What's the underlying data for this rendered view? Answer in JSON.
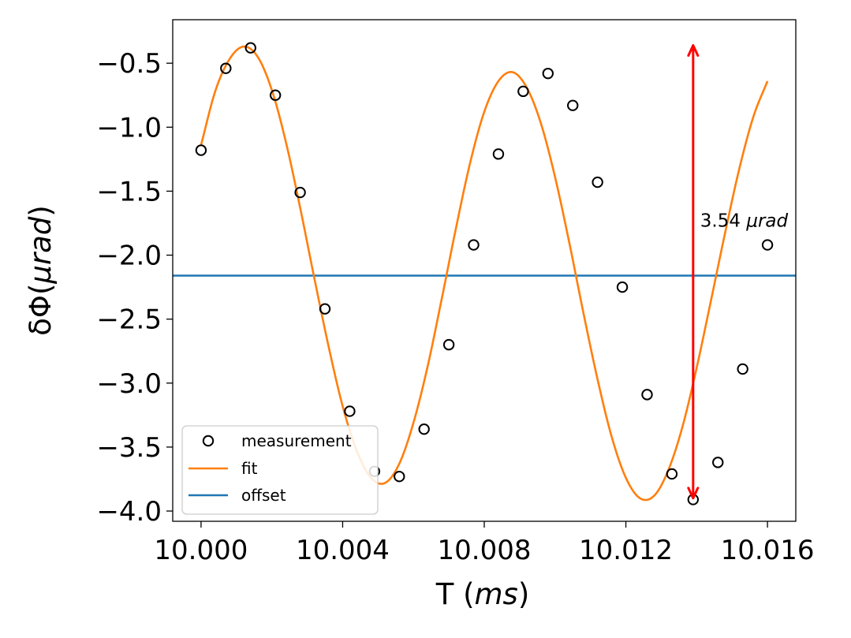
{
  "chart_data": {
    "type": "scatter",
    "xlabel": {
      "prefix": "T (",
      "unit": "ms",
      "suffix": ")"
    },
    "ylabel": {
      "prefix": "δΦ(",
      "unit": "μrad",
      "suffix": ")"
    },
    "xlim": [
      9.9992,
      10.0168
    ],
    "ylim": [
      -4.08,
      -0.16
    ],
    "x_ticks": [
      10.0,
      10.004,
      10.008,
      10.012,
      10.016
    ],
    "x_tick_labels": [
      "10.000",
      "10.004",
      "10.008",
      "10.012",
      "10.016"
    ],
    "y_ticks": [
      -0.5,
      -1.0,
      -1.5,
      -2.0,
      -2.5,
      -3.0,
      -3.5,
      -4.0
    ],
    "y_tick_labels": [
      "−0.5",
      "−1.0",
      "−1.5",
      "−2.0",
      "−2.5",
      "−3.0",
      "−3.5",
      "−4.0"
    ],
    "grid": false,
    "legend_position": "lower-left",
    "series": [
      {
        "name": "measurement",
        "kind": "markers",
        "color": "#000000",
        "x": [
          10.0,
          10.0007,
          10.0014,
          10.0021,
          10.0028,
          10.0035,
          10.0042,
          10.0049,
          10.0056,
          10.0063,
          10.007,
          10.0077,
          10.0084,
          10.0091,
          10.0098,
          10.0105,
          10.0112,
          10.0119,
          10.0126,
          10.0133,
          10.0139,
          10.0146,
          10.0153,
          10.016
        ],
        "y": [
          -1.18,
          -0.54,
          -0.38,
          -0.75,
          -1.51,
          -2.42,
          -3.22,
          -3.69,
          -3.73,
          -3.36,
          -2.7,
          -1.92,
          -1.21,
          -0.72,
          -0.58,
          -0.83,
          -1.43,
          -2.25,
          -3.09,
          -3.71,
          -3.91,
          -3.62,
          -2.89,
          -1.92
        ]
      },
      {
        "name": "fit",
        "kind": "line",
        "color": "#ff7f0e",
        "x": [
          10.0,
          10.0004,
          10.0008,
          10.0012,
          10.0016,
          10.002,
          10.0024,
          10.0028,
          10.0032,
          10.0036,
          10.004,
          10.0044,
          10.0048,
          10.0052,
          10.0056,
          10.006,
          10.0064,
          10.0068,
          10.0072,
          10.0076,
          10.008,
          10.0084,
          10.0088,
          10.0092,
          10.0096,
          10.01,
          10.0104,
          10.0108,
          10.0112,
          10.0116,
          10.012,
          10.0124,
          10.0128,
          10.0132,
          10.0136,
          10.014,
          10.0144,
          10.0148,
          10.0152,
          10.0156,
          10.016
        ],
        "y": [
          -1.14,
          -0.72,
          -0.47,
          -0.37,
          -0.45,
          -0.71,
          -1.12,
          -1.63,
          -2.18,
          -2.71,
          -3.18,
          -3.53,
          -3.74,
          -3.78,
          -3.63,
          -3.31,
          -2.87,
          -2.34,
          -1.79,
          -1.28,
          -0.88,
          -0.64,
          -0.57,
          -0.69,
          -0.97,
          -1.39,
          -1.9,
          -2.45,
          -2.97,
          -3.42,
          -3.74,
          -3.9,
          -3.88,
          -3.68,
          -3.34,
          -2.88,
          -2.36,
          -1.83,
          -1.33,
          -0.92,
          -0.64
        ]
      },
      {
        "name": "offset",
        "kind": "hline",
        "color": "#1f77b4",
        "y": -2.16
      }
    ],
    "annotations": [
      {
        "kind": "double-arrow",
        "color": "#ff0000",
        "x": 10.0139,
        "y_from": -0.36,
        "y_to": -3.9,
        "label_number": "3.54",
        "label_unit": "μrad",
        "label_x": 10.0141,
        "label_y": -1.73
      }
    ]
  }
}
